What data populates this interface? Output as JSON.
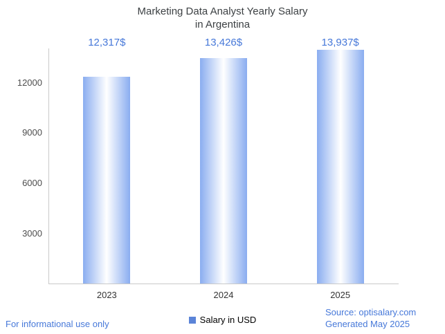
{
  "title": "Marketing Data Analyst Yearly Salary\nin Argentina",
  "chart_data": {
    "type": "bar",
    "title": "Marketing Data Analyst Yearly Salary in Argentina",
    "categories": [
      "2023",
      "2024",
      "2025"
    ],
    "values": [
      12317,
      13426,
      13937
    ],
    "value_labels": [
      "12,317$",
      "13,426$",
      "13,937$"
    ],
    "xlabel": "",
    "ylabel": "",
    "ylim": [
      0,
      14000
    ],
    "yticks": [
      3000,
      6000,
      9000,
      12000
    ],
    "grid": false,
    "legend_position": "bottom",
    "legend": [
      {
        "label": "Salary in USD",
        "color": "#5b84d8"
      }
    ],
    "bar_gradient": [
      "#8aadf0",
      "#ffffff",
      "#8aadf0"
    ]
  },
  "footer": {
    "disclaimer": "For informational use only",
    "source": "Source: optisalary.com",
    "generated": "Generated May 2025"
  },
  "colors": {
    "accent_text": "#4678d9",
    "title_text": "#3c4043",
    "axis_line": "#c9c9c9",
    "tick_text": "#4d4d4d"
  }
}
